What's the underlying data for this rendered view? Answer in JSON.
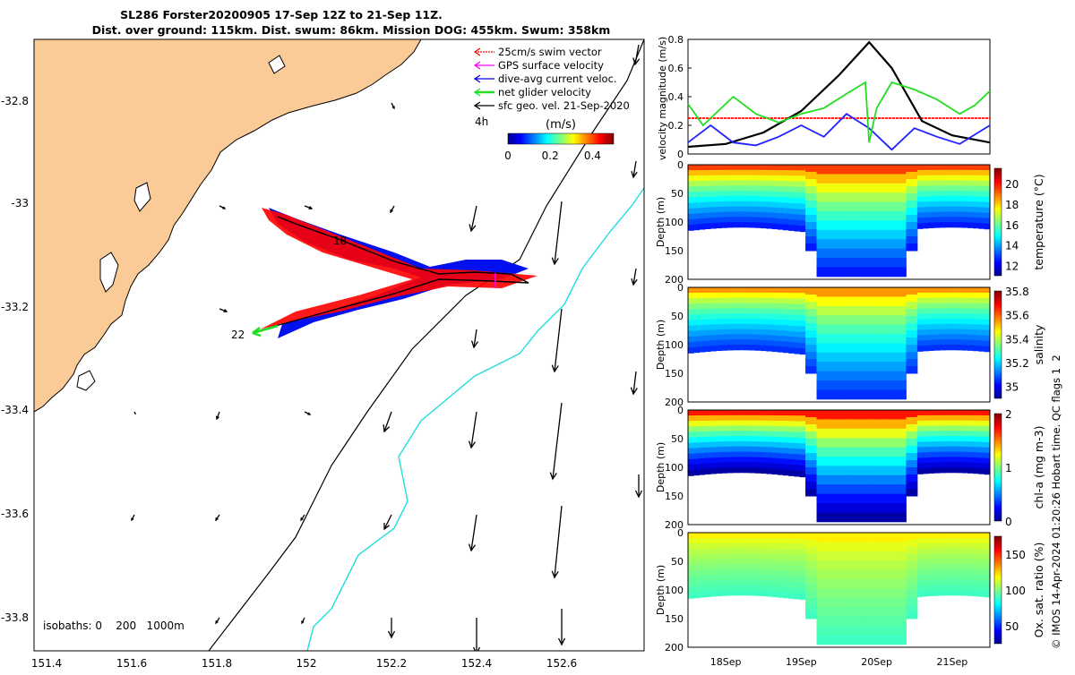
{
  "title": {
    "line1": "SL286 Forster20200905 17-Sep 12Z to 21-Sep 11Z.",
    "line2": "Dist. over ground: 115km. Dist. swum: 86km. Mission DOG: 455km. Swum: 358km"
  },
  "colors": {
    "land": "#fbcb97",
    "swim": "#ff0000",
    "gps": "#ff00ff",
    "current": "#0000ff",
    "net": "#22dd22",
    "track": "#000000",
    "isobath": "#22dddd"
  },
  "map": {
    "legend": [
      {
        "label": "25cm/s swim vector",
        "color": "#ff0000"
      },
      {
        "label": "GPS surface velocity",
        "color": "#ff00ff"
      },
      {
        "label": "dive-avg current veloc.",
        "color": "#0000ff"
      },
      {
        "label": "net glider velocity",
        "color": "#22dd22"
      },
      {
        "label": "sfc geo. vel. 21-Sep-2020",
        "color": "#000000"
      }
    ],
    "colorbar": {
      "label": "(m/s)",
      "ticks": [
        "0",
        "0.2",
        "0.4"
      ],
      "range": [
        0,
        0.5
      ]
    },
    "annotations": {
      "h_label": "4h",
      "day_18": "18",
      "day_22": "22",
      "isobaths": "isobaths: 0    200   1000m"
    }
  },
  "chart_data": [
    {
      "type": "line",
      "title": "",
      "xlabel": "",
      "ylabel": "velocity magnitude (m/s)",
      "ylim": [
        0,
        0.8
      ],
      "yticks": [
        "0",
        "0.2",
        "0.4",
        "0.6",
        "0.8"
      ],
      "x_span_days": [
        17.5,
        21.5
      ],
      "series": [
        {
          "color": "#ff0000",
          "x": [
            17.5,
            21.5
          ],
          "values": [
            0.25,
            0.25
          ]
        },
        {
          "color": "#000000",
          "x": [
            17.5,
            18.0,
            18.5,
            19.0,
            19.5,
            19.9,
            20.2,
            20.6,
            21.0,
            21.5
          ],
          "values": [
            0.05,
            0.07,
            0.15,
            0.3,
            0.55,
            0.78,
            0.6,
            0.23,
            0.13,
            0.08
          ]
        },
        {
          "color": "#2222ff",
          "x": [
            17.5,
            17.8,
            18.1,
            18.4,
            18.7,
            19.0,
            19.3,
            19.6,
            19.9,
            20.2,
            20.5,
            20.8,
            21.1,
            21.5
          ],
          "values": [
            0.08,
            0.2,
            0.08,
            0.06,
            0.12,
            0.2,
            0.12,
            0.28,
            0.18,
            0.03,
            0.18,
            0.12,
            0.07,
            0.2
          ]
        },
        {
          "color": "#22dd22",
          "x": [
            17.5,
            17.7,
            17.9,
            18.1,
            18.4,
            18.7,
            19.0,
            19.3,
            19.6,
            19.85,
            19.9,
            20.0,
            20.2,
            20.5,
            20.8,
            21.1,
            21.3,
            21.5
          ],
          "values": [
            0.35,
            0.2,
            0.3,
            0.4,
            0.28,
            0.22,
            0.28,
            0.32,
            0.42,
            0.5,
            0.08,
            0.32,
            0.5,
            0.45,
            0.38,
            0.28,
            0.34,
            0.44
          ]
        }
      ]
    },
    {
      "type": "heatmap",
      "title": "",
      "ylabel": "Depth (m)",
      "cbar_label": "temperature (°C)",
      "ylim": [
        200,
        0
      ],
      "yticks": [
        "0",
        "50",
        "100",
        "150",
        "200"
      ],
      "cbar_ticks": [
        "12",
        "14",
        "16",
        "18",
        "20"
      ],
      "cbar_range": [
        11,
        21.5
      ],
      "surface_value": 19.5,
      "deep_value": 12.5
    },
    {
      "type": "heatmap",
      "title": "",
      "ylabel": "Depth (m)",
      "cbar_label": "salinity",
      "ylim": [
        200,
        0
      ],
      "yticks": [
        "0",
        "50",
        "100",
        "150",
        "200"
      ],
      "cbar_ticks": [
        "35",
        "35.2",
        "35.4",
        "35.6",
        "35.8"
      ],
      "cbar_range": [
        34.9,
        35.8
      ],
      "surface_value": 35.55,
      "deep_value": 35.05
    },
    {
      "type": "heatmap",
      "title": "",
      "ylabel": "Depth (m)",
      "cbar_label": "chl-a (mg m-3)",
      "ylim": [
        200,
        0
      ],
      "yticks": [
        "0",
        "50",
        "100",
        "150",
        "200"
      ],
      "cbar_ticks": [
        "0",
        "1",
        "2"
      ],
      "cbar_range": [
        0,
        2
      ],
      "surface_value": 1.7,
      "deep_value": 0.05
    },
    {
      "type": "heatmap",
      "title": "",
      "ylabel": "Depth (m)",
      "cbar_label": "Ox. sat. ratio (%)",
      "ylim": [
        200,
        0
      ],
      "yticks": [
        "0",
        "50",
        "100",
        "150",
        "200"
      ],
      "cbar_ticks": [
        "50",
        "100",
        "150"
      ],
      "cbar_range": [
        25,
        175
      ],
      "surface_value": 120,
      "deep_value": 90
    }
  ],
  "time_axis": {
    "ticks": [
      "18Sep",
      "19Sep",
      "20Sep",
      "21Sep"
    ]
  },
  "map_axes": {
    "xticks": [
      "151.4",
      "151.6",
      "151.8",
      "152",
      "152.2",
      "152.4",
      "152.6"
    ],
    "yticks": [
      "-32.8",
      "-33",
      "-33.2",
      "-33.4",
      "-33.6",
      "-33.8"
    ]
  },
  "credit": "© IMOS 14-Apr-2024 01:20:26 Hobart time. QC flags 1  2"
}
